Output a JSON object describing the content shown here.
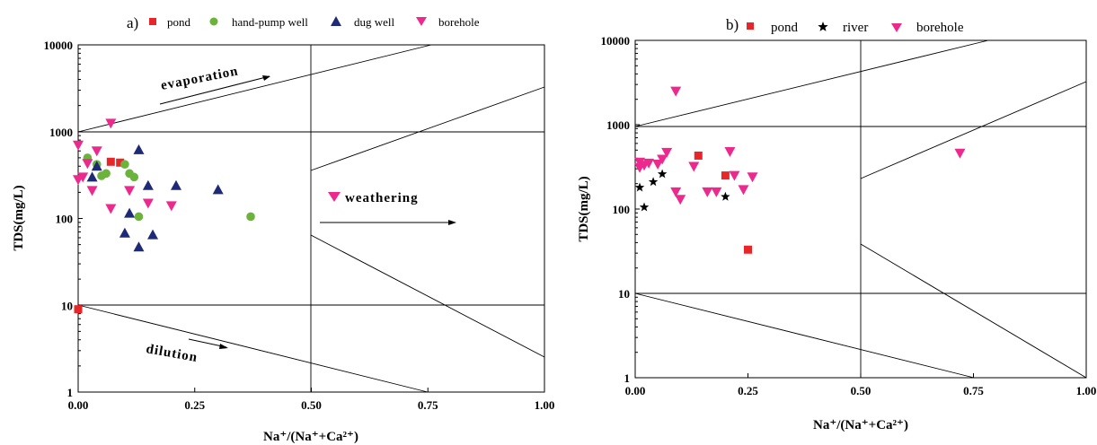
{
  "chart_data": [
    {
      "type": "scatter",
      "panel_label": "a)",
      "xlabel": "Na⁺/(Na⁺+Ca²⁺)",
      "ylabel": "TDS(mg/L)",
      "xlim": [
        0,
        1
      ],
      "ylim": [
        1,
        10000
      ],
      "yscale": "log",
      "x_ticks": [
        "0.00",
        "0.25",
        "0.50",
        "0.75",
        "1.00"
      ],
      "y_ticks": [
        "1",
        "10",
        "100",
        "1000",
        "10000"
      ],
      "grid": false,
      "legend_position": "top",
      "annotations": [
        "evaporation",
        "weathering",
        "dilution"
      ],
      "series": [
        {
          "name": "pond",
          "marker": "square",
          "color": "#e8262a",
          "points": [
            [
              0.0,
              9
            ],
            [
              0.07,
              450
            ],
            [
              0.09,
              440
            ]
          ]
        },
        {
          "name": "hand-pump well",
          "marker": "circle",
          "color": "#6bb33a",
          "points": [
            [
              0.02,
              500
            ],
            [
              0.04,
              420
            ],
            [
              0.05,
              310
            ],
            [
              0.06,
              330
            ],
            [
              0.1,
              420
            ],
            [
              0.11,
              330
            ],
            [
              0.12,
              300
            ],
            [
              0.13,
              105
            ],
            [
              0.37,
              105
            ]
          ]
        },
        {
          "name": "dug well",
          "marker": "triangle-up",
          "color": "#1e2a78",
          "points": [
            [
              0.03,
              300
            ],
            [
              0.04,
              400
            ],
            [
              0.1,
              68
            ],
            [
              0.11,
              115
            ],
            [
              0.13,
              47
            ],
            [
              0.13,
              620
            ],
            [
              0.15,
              240
            ],
            [
              0.16,
              65
            ],
            [
              0.21,
              240
            ],
            [
              0.3,
              215
            ]
          ]
        },
        {
          "name": "borehole",
          "marker": "triangle-down",
          "color": "#ec2a8e",
          "points": [
            [
              0.0,
              700
            ],
            [
              0.0,
              280
            ],
            [
              0.01,
              300
            ],
            [
              0.02,
              430
            ],
            [
              0.03,
              210
            ],
            [
              0.04,
              600
            ],
            [
              0.07,
              1250
            ],
            [
              0.07,
              130
            ],
            [
              0.11,
              210
            ],
            [
              0.15,
              150
            ],
            [
              0.2,
              140
            ]
          ]
        }
      ]
    },
    {
      "type": "scatter",
      "panel_label": "b)",
      "xlabel": "Na⁺/(Na⁺+Ca²⁺)",
      "ylabel": "TDS(mg/L)",
      "xlim": [
        0,
        1
      ],
      "ylim": [
        1,
        10000
      ],
      "yscale": "log",
      "x_ticks": [
        "0.00",
        "0.25",
        "0.50",
        "0.75",
        "1.00"
      ],
      "y_ticks": [
        "1",
        "10",
        "100",
        "1000",
        "10000"
      ],
      "grid": false,
      "legend_position": "top",
      "series": [
        {
          "name": "pond",
          "marker": "square",
          "color": "#e8262a",
          "points": [
            [
              0.14,
              430
            ],
            [
              0.2,
              250
            ],
            [
              0.25,
              33
            ]
          ]
        },
        {
          "name": "river",
          "marker": "star",
          "color": "#000000",
          "points": [
            [
              0.01,
              180
            ],
            [
              0.02,
              105
            ],
            [
              0.04,
              210
            ],
            [
              0.06,
              260
            ],
            [
              0.2,
              140
            ]
          ]
        },
        {
          "name": "borehole",
          "marker": "triangle-down",
          "color": "#ec2a8e",
          "points": [
            [
              0.01,
              360
            ],
            [
              0.01,
              310
            ],
            [
              0.02,
              330
            ],
            [
              0.03,
              350
            ],
            [
              0.05,
              340
            ],
            [
              0.06,
              390
            ],
            [
              0.07,
              470
            ],
            [
              0.09,
              2500
            ],
            [
              0.09,
              160
            ],
            [
              0.1,
              130
            ],
            [
              0.13,
              320
            ],
            [
              0.16,
              160
            ],
            [
              0.18,
              160
            ],
            [
              0.21,
              480
            ],
            [
              0.22,
              250
            ],
            [
              0.24,
              170
            ],
            [
              0.26,
              240
            ],
            [
              0.72,
              460
            ]
          ]
        }
      ]
    }
  ]
}
